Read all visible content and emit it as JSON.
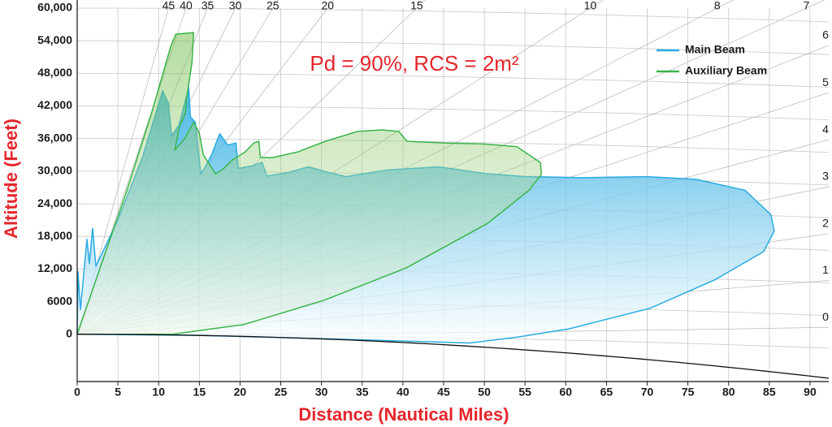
{
  "chart_data": {
    "type": "area",
    "annotation": "Pd = 90%, RCS = 2m²",
    "x_label": "Distance (Nautical Miles)",
    "y_label": "Altitude (Feet)",
    "xlim": [
      0,
      92.3
    ],
    "ylim": [
      -8700,
      60000
    ],
    "xticks": [
      0,
      5,
      10,
      15,
      20,
      25,
      30,
      35,
      40,
      45,
      50,
      55,
      60,
      65,
      70,
      75,
      80,
      85,
      90
    ],
    "yticks": [
      0,
      6000,
      {
        "value": 12000,
        "label": "12,000"
      },
      {
        "value": 18000,
        "label": "18,000"
      },
      {
        "value": 24000,
        "label": "24,000"
      },
      {
        "value": 30000,
        "label": "30,000"
      },
      {
        "value": 36000,
        "label": "36,000"
      },
      {
        "value": 42000,
        "label": "42,000"
      },
      {
        "value": 48000,
        "label": "48,000"
      },
      {
        "value": 54000,
        "label": "54,000"
      },
      {
        "value": 60000,
        "label": "60,000"
      }
    ],
    "grid": true,
    "legend": "upper right",
    "elevation_angles": [
      45,
      40,
      35,
      30,
      25,
      20,
      15,
      10,
      8,
      7,
      6,
      5,
      4,
      3,
      2,
      1,
      0
    ],
    "series": [
      {
        "name": "Main Beam",
        "color": "#29abe2",
        "x": [
          0,
          0.1,
          0.4,
          1.2,
          1.5,
          1.9,
          2.3,
          5,
          8,
          10.5,
          11.2,
          11.6,
          12.5,
          13.7,
          13.9,
          14.5,
          15.2,
          16.5,
          17.5,
          18.5,
          19.5,
          19.8,
          21.5,
          22.7,
          23.3,
          26,
          28.4,
          30.5,
          33,
          38,
          44.4,
          50,
          55,
          62,
          70,
          76,
          82,
          85.2,
          85.6,
          84.3,
          78.3,
          70.4,
          60.4,
          54.4,
          48.2,
          30,
          15,
          0
        ],
        "values": [
          0,
          11500,
          4500,
          17500,
          13000,
          19500,
          12500,
          21000,
          32500,
          44800,
          42500,
          36500,
          38500,
          45400,
          40000,
          39000,
          29400,
          33000,
          36900,
          34800,
          35200,
          30500,
          31000,
          31600,
          29100,
          29800,
          30800,
          29900,
          29000,
          30200,
          30800,
          29600,
          29000,
          28800,
          29000,
          28500,
          26500,
          22000,
          19000,
          15200,
          10000,
          4800,
          1000,
          -450,
          -1600,
          -800,
          -200,
          0
        ]
      },
      {
        "name": "Auxiliary Beam",
        "color": "#39b54a",
        "x": [
          0,
          3,
          6,
          9,
          11.5,
          12.1,
          14.3,
          14.1,
          13.4,
          13.3,
          12.5,
          12,
          13.2,
          14.3,
          15,
          15.5,
          17,
          18,
          19,
          20.6,
          21.7,
          22.3,
          22.5,
          24,
          27,
          30.5,
          34.4,
          37.4,
          39.5,
          40.5,
          45,
          50,
          54,
          56.9,
          57,
          55.5,
          50.4,
          40.4,
          30.4,
          20.5,
          11.7,
          0
        ],
        "values": [
          0,
          13000,
          26000,
          40000,
          53000,
          55200,
          55500,
          50000,
          43000,
          40600,
          38000,
          33900,
          36000,
          39000,
          37000,
          33000,
          29500,
          30500,
          32000,
          33500,
          35200,
          35500,
          32500,
          32500,
          33500,
          35500,
          37300,
          37600,
          37300,
          35500,
          35200,
          35000,
          34500,
          31600,
          29400,
          26500,
          20400,
          12200,
          6300,
          1800,
          0,
          0
        ]
      }
    ]
  }
}
